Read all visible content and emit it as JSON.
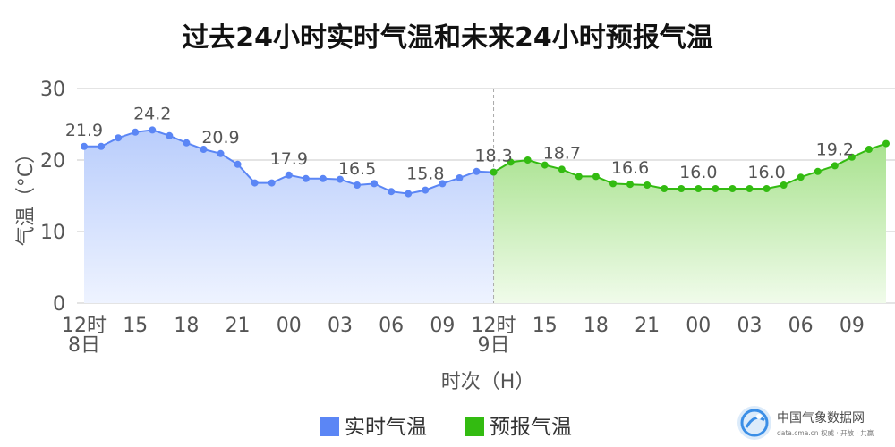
{
  "chart_data": {
    "type": "area",
    "title": "过去24小时实时气温和未来24小时预报气温",
    "xlabel": "时次（H）",
    "ylabel": "气温（°C）",
    "ylim": [
      0,
      30
    ],
    "yticks": [
      0,
      10,
      20,
      30
    ],
    "grid": true,
    "legend_placement": "bottom-center",
    "x_ticks": [
      {
        "hour_index": 0,
        "label": "12时",
        "sublabel": "8日"
      },
      {
        "hour_index": 3,
        "label": "15",
        "sublabel": ""
      },
      {
        "hour_index": 6,
        "label": "18",
        "sublabel": ""
      },
      {
        "hour_index": 9,
        "label": "21",
        "sublabel": ""
      },
      {
        "hour_index": 12,
        "label": "00",
        "sublabel": ""
      },
      {
        "hour_index": 15,
        "label": "03",
        "sublabel": ""
      },
      {
        "hour_index": 18,
        "label": "06",
        "sublabel": ""
      },
      {
        "hour_index": 21,
        "label": "09",
        "sublabel": ""
      },
      {
        "hour_index": 24,
        "label": "12时",
        "sublabel": "9日"
      },
      {
        "hour_index": 27,
        "label": "15",
        "sublabel": ""
      },
      {
        "hour_index": 30,
        "label": "18",
        "sublabel": ""
      },
      {
        "hour_index": 33,
        "label": "21",
        "sublabel": ""
      },
      {
        "hour_index": 36,
        "label": "00",
        "sublabel": ""
      },
      {
        "hour_index": 39,
        "label": "03",
        "sublabel": ""
      },
      {
        "hour_index": 42,
        "label": "06",
        "sublabel": ""
      },
      {
        "hour_index": 45,
        "label": "09",
        "sublabel": ""
      }
    ],
    "series": [
      {
        "name": "实时气温",
        "color": "#5b86f5",
        "fill_top": "#b9cdfc",
        "fill_bottom": "#eef3ff",
        "start_hour_index": 0,
        "values": [
          21.9,
          21.9,
          23.1,
          23.9,
          24.2,
          23.4,
          22.4,
          21.5,
          20.9,
          19.4,
          16.8,
          16.8,
          17.9,
          17.4,
          17.4,
          17.3,
          16.5,
          16.7,
          15.6,
          15.3,
          15.8,
          16.7,
          17.5,
          18.4,
          18.3
        ],
        "labels": [
          {
            "index": 0,
            "text": "21.9"
          },
          {
            "index": 4,
            "text": "24.2"
          },
          {
            "index": 8,
            "text": "20.9"
          },
          {
            "index": 12,
            "text": "17.9"
          },
          {
            "index": 16,
            "text": "16.5"
          },
          {
            "index": 20,
            "text": "15.8"
          },
          {
            "index": 24,
            "text": "18.3"
          }
        ]
      },
      {
        "name": "预报气温",
        "color": "#33bb11",
        "fill_top": "#a8e28e",
        "fill_bottom": "#f0fbea",
        "start_hour_index": 24,
        "values": [
          18.3,
          19.7,
          20.0,
          19.3,
          18.7,
          17.7,
          17.7,
          16.7,
          16.6,
          16.5,
          16.0,
          16.0,
          16.0,
          16.0,
          16.0,
          16.0,
          16.0,
          16.5,
          17.6,
          18.4,
          19.2,
          20.4,
          21.5,
          22.3
        ],
        "labels": [
          {
            "index": 4,
            "text": "18.7"
          },
          {
            "index": 8,
            "text": "16.6"
          },
          {
            "index": 12,
            "text": "16.0"
          },
          {
            "index": 16,
            "text": "16.0"
          },
          {
            "index": 20,
            "text": "19.2"
          }
        ]
      }
    ]
  },
  "watermark": "中国气象数据网",
  "logo": {
    "name": "中国气象数据网",
    "subtitle": "data.cma.cn 权威 · 开放 · 共赢"
  }
}
